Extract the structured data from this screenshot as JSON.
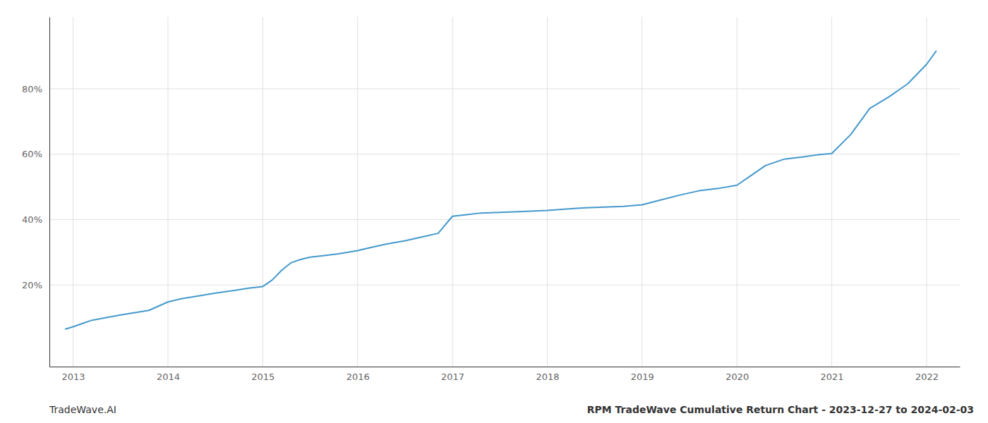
{
  "chart_data": {
    "type": "line",
    "title": "RPM TradeWave Cumulative Return Chart - 2023-12-27 to 2024-02-03",
    "annotations": [
      {
        "text": "TradeWave.AI"
      }
    ],
    "color": "#4499cc",
    "grid": true,
    "x": [
      2012.92,
      2013.0,
      2013.1,
      2013.2,
      2013.35,
      2013.5,
      2013.65,
      2013.8,
      2014.0,
      2014.15,
      2014.3,
      2014.5,
      2014.7,
      2014.85,
      2015.0,
      2015.1,
      2015.2,
      2015.3,
      2015.4,
      2015.5,
      2015.65,
      2015.8,
      2016.0,
      2016.15,
      2016.3,
      2016.5,
      2016.7,
      2016.85,
      2017.0,
      2017.15,
      2017.3,
      2017.5,
      2017.7,
      2018.0,
      2018.2,
      2018.4,
      2018.6,
      2018.8,
      2019.0,
      2019.2,
      2019.4,
      2019.6,
      2019.8,
      2020.0,
      2020.15,
      2020.3,
      2020.5,
      2020.7,
      2020.85,
      2021.0,
      2021.2,
      2021.4,
      2021.6,
      2021.8,
      2022.0,
      2022.1
    ],
    "values": [
      0.065,
      0.072,
      0.082,
      0.092,
      0.1,
      0.108,
      0.115,
      0.122,
      0.148,
      0.158,
      0.165,
      0.175,
      0.183,
      0.19,
      0.195,
      0.215,
      0.245,
      0.268,
      0.278,
      0.285,
      0.29,
      0.295,
      0.305,
      0.315,
      0.325,
      0.335,
      0.348,
      0.358,
      0.41,
      0.415,
      0.42,
      0.422,
      0.424,
      0.428,
      0.432,
      0.436,
      0.438,
      0.44,
      0.445,
      0.46,
      0.475,
      0.488,
      0.495,
      0.505,
      0.535,
      0.565,
      0.585,
      0.592,
      0.598,
      0.602,
      0.66,
      0.74,
      0.775,
      0.815,
      0.875,
      0.915
    ],
    "xlim": [
      2012.75,
      2022.35
    ],
    "xticks": [
      2013,
      2014,
      2015,
      2016,
      2017,
      2018,
      2019,
      2020,
      2021,
      2022
    ],
    "ylim": [
      -0.05,
      1.02
    ],
    "yticks": [
      {
        "value": 0.2,
        "label": "20%"
      },
      {
        "value": 0.4,
        "label": "40%"
      },
      {
        "value": 0.6,
        "label": "60%"
      },
      {
        "value": 0.8,
        "label": "80%"
      }
    ]
  }
}
